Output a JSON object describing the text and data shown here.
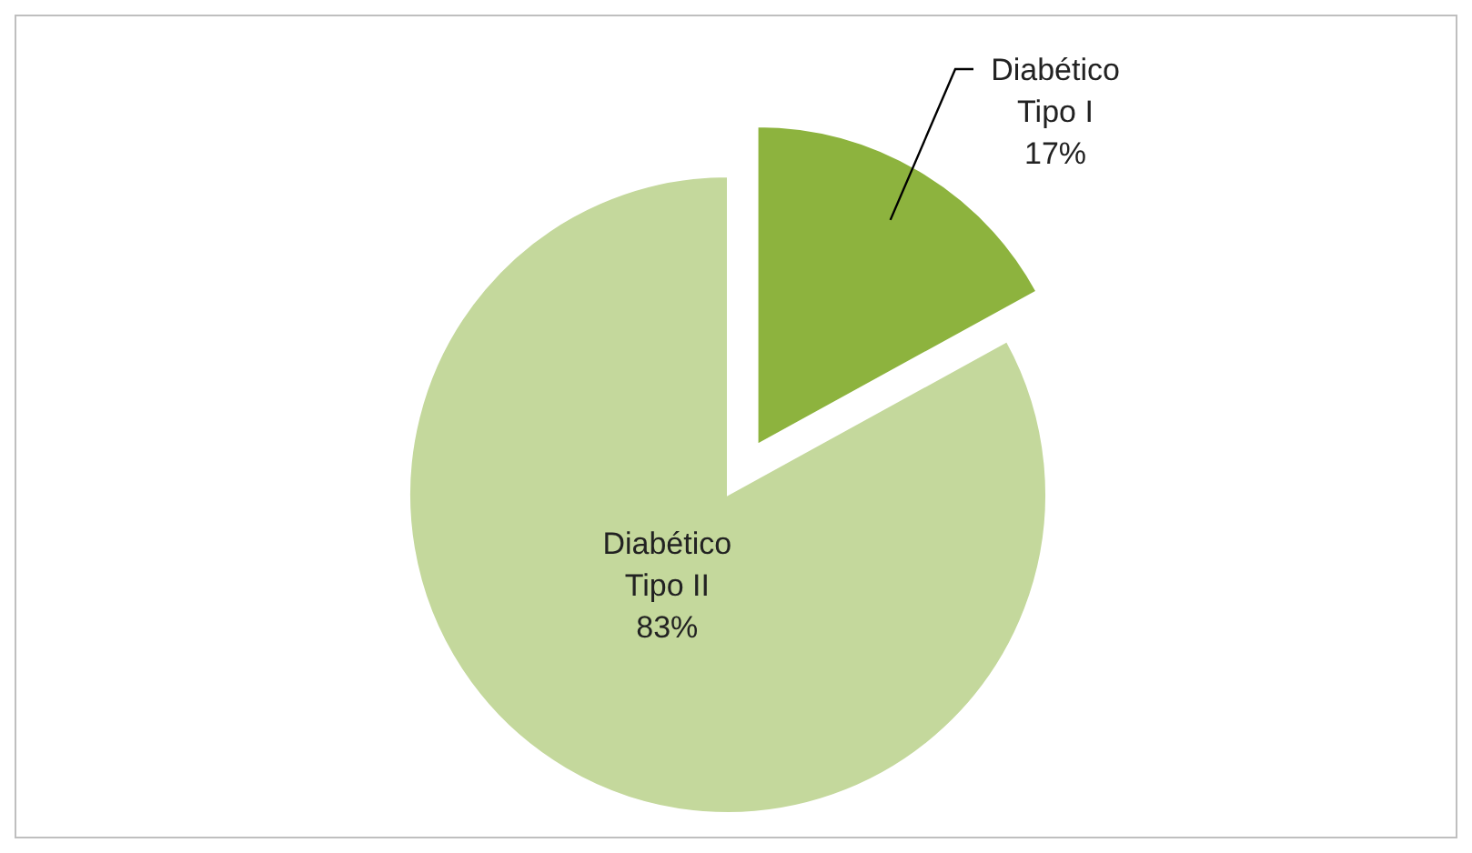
{
  "chart_data": {
    "type": "pie",
    "categories": [
      "Diabético Tipo I",
      "Diabético Tipo II"
    ],
    "values": [
      17,
      83
    ],
    "colors": [
      "#8db33e",
      "#c4d89c"
    ],
    "value_labels": [
      "17%",
      "83%"
    ]
  }
}
